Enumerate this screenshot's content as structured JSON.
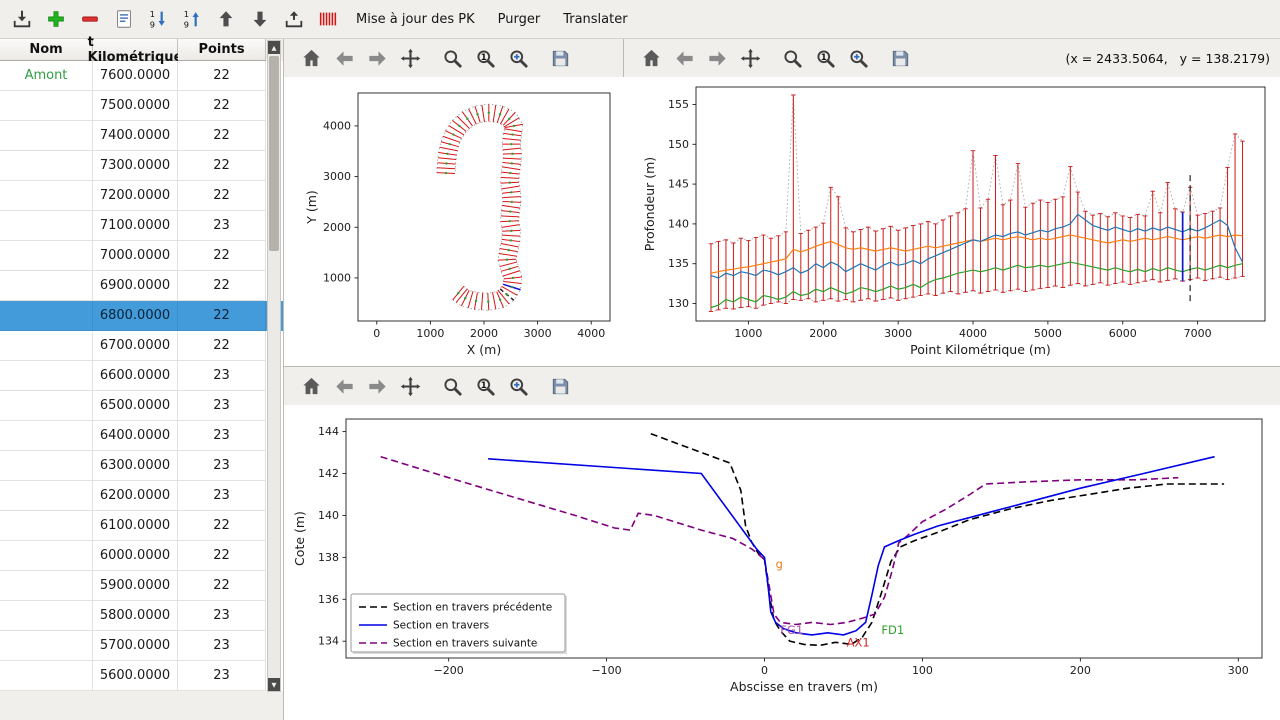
{
  "toolbar": {
    "update_pk_label": "Mise à jour des PK",
    "purge_label": "Purger",
    "translate_label": "Translater"
  },
  "main_toolbar_icons": [
    "import",
    "add",
    "remove",
    "edit-form",
    "sort-descending",
    "sort-ascending",
    "move-up",
    "move-down",
    "export",
    "cross-sections"
  ],
  "nav_toolbar_icons": [
    "home",
    "back",
    "forward",
    "pan",
    "zoom",
    "zoom-one",
    "zoom-plus",
    "save"
  ],
  "readout": "(x = 2433.5064,   y = 138.2179)",
  "table": {
    "columns": [
      "Nom",
      "t Kilométrique",
      "Points"
    ],
    "selected_pk": "6800.0000",
    "rows": [
      {
        "nom": "Amont",
        "pk": "7600.0000",
        "points": "22"
      },
      {
        "nom": "",
        "pk": "7500.0000",
        "points": "22"
      },
      {
        "nom": "",
        "pk": "7400.0000",
        "points": "22"
      },
      {
        "nom": "",
        "pk": "7300.0000",
        "points": "22"
      },
      {
        "nom": "",
        "pk": "7200.0000",
        "points": "22"
      },
      {
        "nom": "",
        "pk": "7100.0000",
        "points": "23"
      },
      {
        "nom": "",
        "pk": "7000.0000",
        "points": "22"
      },
      {
        "nom": "",
        "pk": "6900.0000",
        "points": "22"
      },
      {
        "nom": "",
        "pk": "6800.0000",
        "points": "22"
      },
      {
        "nom": "",
        "pk": "6700.0000",
        "points": "22"
      },
      {
        "nom": "",
        "pk": "6600.0000",
        "points": "23"
      },
      {
        "nom": "",
        "pk": "6500.0000",
        "points": "23"
      },
      {
        "nom": "",
        "pk": "6400.0000",
        "points": "23"
      },
      {
        "nom": "",
        "pk": "6300.0000",
        "points": "23"
      },
      {
        "nom": "",
        "pk": "6200.0000",
        "points": "23"
      },
      {
        "nom": "",
        "pk": "6100.0000",
        "points": "22"
      },
      {
        "nom": "",
        "pk": "6000.0000",
        "points": "22"
      },
      {
        "nom": "",
        "pk": "5900.0000",
        "points": "22"
      },
      {
        "nom": "",
        "pk": "5800.0000",
        "points": "23"
      },
      {
        "nom": "",
        "pk": "5700.0000",
        "points": "23"
      },
      {
        "nom": "",
        "pk": "5600.0000",
        "points": "23"
      }
    ]
  },
  "chart_data": [
    {
      "type": "line",
      "name": "plan-view",
      "title": "",
      "xlabel": "X (m)",
      "ylabel": "Y (m)",
      "xlim": [
        -350,
        4350
      ],
      "ylim": [
        150,
        4650
      ],
      "xticks": [
        0,
        1000,
        2000,
        3000,
        4000
      ],
      "yticks": [
        1000,
        2000,
        3000,
        4000
      ],
      "half_width": 170,
      "selected_index": 6,
      "cursor_index": 5,
      "centerline": [
        [
          1520,
          700
        ],
        [
          1650,
          600
        ],
        [
          1850,
          545
        ],
        [
          2080,
          530
        ],
        [
          2300,
          570
        ],
        [
          2430,
          670
        ],
        [
          2520,
          820
        ],
        [
          2540,
          1000
        ],
        [
          2480,
          1180
        ],
        [
          2430,
          1360
        ],
        [
          2460,
          1550
        ],
        [
          2500,
          1740
        ],
        [
          2510,
          1930
        ],
        [
          2480,
          2120
        ],
        [
          2490,
          2310
        ],
        [
          2520,
          2500
        ],
        [
          2510,
          2690
        ],
        [
          2480,
          2880
        ],
        [
          2490,
          3070
        ],
        [
          2520,
          3260
        ],
        [
          2530,
          3450
        ],
        [
          2510,
          3640
        ],
        [
          2530,
          3830
        ],
        [
          2560,
          4000
        ],
        [
          2470,
          4140
        ],
        [
          2300,
          4230
        ],
        [
          2090,
          4260
        ],
        [
          1880,
          4230
        ],
        [
          1690,
          4140
        ],
        [
          1540,
          4000
        ],
        [
          1430,
          3830
        ],
        [
          1360,
          3640
        ],
        [
          1320,
          3450
        ],
        [
          1300,
          3260
        ],
        [
          1290,
          3070
        ]
      ]
    },
    {
      "type": "line",
      "name": "longitudinal-profile",
      "title": "",
      "xlabel": "Point Kilométrique (m)",
      "ylabel": "Profondeur (m)",
      "xlim": [
        300,
        7900
      ],
      "ylim": [
        127.8,
        157.2
      ],
      "xticks": [
        1000,
        2000,
        3000,
        4000,
        5000,
        6000,
        7000
      ],
      "yticks": [
        130,
        135,
        140,
        145,
        150,
        155
      ],
      "x_start": 500,
      "x_step": 100,
      "bar_top": [
        137.5,
        137.8,
        138.0,
        137.6,
        138.2,
        137.9,
        138.3,
        138.6,
        138.2,
        138.5,
        139.0,
        156.2,
        138.8,
        139.2,
        139.6,
        140.1,
        144.6,
        143.4,
        139.5,
        139.0,
        139.3,
        139.6,
        139.1,
        139.4,
        139.7,
        139.2,
        139.5,
        139.8,
        140.0,
        140.3,
        140.0,
        140.5,
        141.0,
        141.4,
        141.9,
        149.2,
        142.0,
        143.1,
        148.6,
        142.4,
        143.0,
        147.6,
        142.1,
        142.6,
        143.0,
        142.7,
        143.1,
        143.4,
        147.2,
        144.0,
        141.6,
        141.1,
        141.3,
        140.9,
        141.4,
        141.0,
        140.8,
        141.2,
        141.0,
        144.1,
        141.4,
        145.2,
        141.9,
        141.5,
        144.6,
        141.1,
        141.3,
        141.6,
        142.0,
        147.1,
        151.3,
        150.4
      ],
      "bar_bottom": [
        129.0,
        129.2,
        129.4,
        129.3,
        129.5,
        129.6,
        129.4,
        129.8,
        130.0,
        130.2,
        130.0,
        130.5,
        130.4,
        130.6,
        130.2,
        130.4,
        130.6,
        130.3,
        130.5,
        130.2,
        130.4,
        130.6,
        130.3,
        130.5,
        130.7,
        130.4,
        130.6,
        130.8,
        131.0,
        131.2,
        131.0,
        131.3,
        131.5,
        131.2,
        131.4,
        131.6,
        131.3,
        131.5,
        131.7,
        131.4,
        131.6,
        131.8,
        131.5,
        131.7,
        131.9,
        132.0,
        132.2,
        132.0,
        132.3,
        132.5,
        132.2,
        132.4,
        132.6,
        132.3,
        132.5,
        132.7,
        132.4,
        132.6,
        132.8,
        133.0,
        132.7,
        132.9,
        133.1,
        132.8,
        133.0,
        133.2,
        132.9,
        133.1,
        133.3,
        133.0,
        133.2,
        133.4
      ],
      "series": [
        {
          "name": "ligne-bleue",
          "color": "#1f77b4",
          "values": [
            133.5,
            133.2,
            133.8,
            133.5,
            134.0,
            133.8,
            133.5,
            134.2,
            134.0,
            133.6,
            134.0,
            134.5,
            133.8,
            134.2,
            135.0,
            134.5,
            135.2,
            134.8,
            134.0,
            134.5,
            135.0,
            134.6,
            134.2,
            134.8,
            135.2,
            134.8,
            135.0,
            135.4,
            135.0,
            135.6,
            136.0,
            136.4,
            136.8,
            137.2,
            137.6,
            138.0,
            137.8,
            138.2,
            138.6,
            138.4,
            138.8,
            139.0,
            138.6,
            138.9,
            139.2,
            139.0,
            139.4,
            139.6,
            140.0,
            141.2,
            140.5,
            139.8,
            139.5,
            139.2,
            139.6,
            139.3,
            139.0,
            139.4,
            139.1,
            139.5,
            139.2,
            139.6,
            139.3,
            139.0,
            139.4,
            139.1,
            139.5,
            140.0,
            140.5,
            139.8,
            137.0,
            135.2
          ]
        },
        {
          "name": "ligne-orange",
          "color": "#ff7f0e",
          "values": [
            133.8,
            134.0,
            134.2,
            134.3,
            134.5,
            134.6,
            134.8,
            135.0,
            135.2,
            135.4,
            135.6,
            136.8,
            136.5,
            136.8,
            137.2,
            137.5,
            137.8,
            137.4,
            137.0,
            136.8,
            137.0,
            136.8,
            136.6,
            136.8,
            137.0,
            136.8,
            136.6,
            136.8,
            137.0,
            137.2,
            137.0,
            137.2,
            137.4,
            137.6,
            137.8,
            138.0,
            137.8,
            138.0,
            138.2,
            138.0,
            138.2,
            138.4,
            138.2,
            138.0,
            138.2,
            138.0,
            138.2,
            138.4,
            138.6,
            138.4,
            138.2,
            138.0,
            137.8,
            137.6,
            137.8,
            138.0,
            137.8,
            138.0,
            138.2,
            138.0,
            138.2,
            138.4,
            138.2,
            138.0,
            138.2,
            138.4,
            138.2,
            138.4,
            138.6,
            138.4,
            138.6,
            138.5
          ]
        },
        {
          "name": "ligne-verte",
          "color": "#2ca02c",
          "values": [
            129.5,
            129.8,
            130.5,
            130.2,
            130.8,
            130.5,
            130.2,
            131.0,
            130.8,
            130.5,
            130.8,
            131.5,
            131.0,
            131.2,
            131.8,
            131.5,
            132.0,
            131.6,
            131.2,
            131.5,
            132.0,
            131.8,
            131.5,
            131.8,
            132.2,
            131.8,
            132.0,
            132.4,
            132.0,
            132.6,
            133.0,
            133.2,
            133.5,
            133.8,
            134.0,
            134.2,
            134.0,
            134.2,
            134.5,
            134.2,
            134.5,
            134.8,
            134.5,
            134.6,
            134.8,
            134.6,
            134.8,
            135.0,
            135.2,
            135.0,
            134.8,
            134.6,
            134.4,
            134.2,
            134.5,
            134.2,
            134.0,
            134.3,
            134.0,
            134.4,
            134.1,
            134.5,
            134.2,
            134.0,
            134.3,
            134.5,
            134.2,
            134.5,
            134.8,
            134.5,
            134.8,
            135.0
          ]
        }
      ],
      "selected_x": 6800,
      "cursor_x": 6900,
      "cursor_ymin": 130.3,
      "cursor_ymax": 146.5
    },
    {
      "type": "line",
      "name": "cross-section",
      "title": "",
      "xlabel": "Abscisse en travers (m)",
      "ylabel": "Cote (m)",
      "xlim": [
        -265,
        315
      ],
      "ylim": [
        133.2,
        144.6
      ],
      "xticks": [
        -200,
        -100,
        0,
        100,
        200,
        300
      ],
      "yticks": [
        134,
        136,
        138,
        140,
        142,
        144
      ],
      "series": [
        {
          "name": "Section en travers précédente",
          "color": "#000000",
          "dash": "7,4",
          "points": [
            [
              -72,
              143.9
            ],
            [
              -40,
              143.0
            ],
            [
              -22,
              142.5
            ],
            [
              -15,
              141.2
            ],
            [
              -12,
              139.5
            ],
            [
              -8,
              138.7
            ],
            [
              -4,
              138.2
            ],
            [
              0,
              137.9
            ],
            [
              3,
              136.2
            ],
            [
              6,
              135.0
            ],
            [
              10,
              134.5
            ],
            [
              16,
              134.0
            ],
            [
              25,
              133.85
            ],
            [
              35,
              133.8
            ],
            [
              45,
              133.95
            ],
            [
              55,
              133.85
            ],
            [
              62,
              134.2
            ],
            [
              68,
              134.9
            ],
            [
              74,
              136.3
            ],
            [
              80,
              137.8
            ],
            [
              86,
              138.5
            ],
            [
              95,
              138.8
            ],
            [
              110,
              139.2
            ],
            [
              130,
              139.8
            ],
            [
              155,
              140.3
            ],
            [
              180,
              140.7
            ],
            [
              205,
              141.0
            ],
            [
              230,
              141.3
            ],
            [
              255,
              141.5
            ],
            [
              291,
              141.5
            ]
          ]
        },
        {
          "name": "Section en travers",
          "color": "#0000e6",
          "dash": "",
          "points": [
            [
              -175,
              142.7
            ],
            [
              -40,
              142.0
            ],
            [
              -5,
              138.4
            ],
            [
              0,
              138.0
            ],
            [
              2,
              136.8
            ],
            [
              4,
              135.4
            ],
            [
              7,
              134.9
            ],
            [
              12,
              134.6
            ],
            [
              20,
              134.4
            ],
            [
              30,
              134.3
            ],
            [
              40,
              134.4
            ],
            [
              50,
              134.3
            ],
            [
              58,
              134.5
            ],
            [
              64,
              134.9
            ],
            [
              68,
              136.2
            ],
            [
              72,
              137.6
            ],
            [
              76,
              138.5
            ],
            [
              85,
              138.8
            ],
            [
              95,
              139.1
            ],
            [
              110,
              139.5
            ],
            [
              140,
              140.1
            ],
            [
              170,
              140.7
            ],
            [
              200,
              141.3
            ],
            [
              240,
              142.0
            ],
            [
              285,
              142.8
            ]
          ]
        },
        {
          "name": "Section en travers suivante",
          "color": "#800080",
          "dash": "7,4",
          "points": [
            [
              -243,
              142.8
            ],
            [
              -200,
              141.8
            ],
            [
              -160,
              140.9
            ],
            [
              -120,
              140.0
            ],
            [
              -95,
              139.4
            ],
            [
              -85,
              139.3
            ],
            [
              -80,
              140.1
            ],
            [
              -70,
              140.0
            ],
            [
              -40,
              139.3
            ],
            [
              -20,
              138.9
            ],
            [
              -8,
              138.4
            ],
            [
              0,
              137.9
            ],
            [
              3,
              136.6
            ],
            [
              6,
              135.3
            ],
            [
              10,
              134.9
            ],
            [
              20,
              134.8
            ],
            [
              30,
              134.9
            ],
            [
              42,
              134.8
            ],
            [
              52,
              134.9
            ],
            [
              62,
              135.1
            ],
            [
              70,
              135.3
            ],
            [
              76,
              136.1
            ],
            [
              81,
              137.4
            ],
            [
              85,
              138.7
            ],
            [
              90,
              139.0
            ],
            [
              100,
              139.7
            ],
            [
              115,
              140.3
            ],
            [
              130,
              141.0
            ],
            [
              140,
              141.5
            ],
            [
              165,
              141.6
            ],
            [
              200,
              141.7
            ],
            [
              235,
              141.7
            ],
            [
              262,
              141.8
            ]
          ]
        }
      ],
      "annotations": [
        {
          "text": "g",
          "x": 7,
          "y": 137.5,
          "color": "#e87d1e"
        },
        {
          "text": "FG1",
          "x": 10,
          "y": 134.35,
          "color": "#a94fa9"
        },
        {
          "text": "AX1",
          "x": 52,
          "y": 133.75,
          "color": "#d62728"
        },
        {
          "text": "FD1",
          "x": 74,
          "y": 134.35,
          "color": "#2ca02c"
        }
      ],
      "legend_position": "lower left"
    }
  ]
}
